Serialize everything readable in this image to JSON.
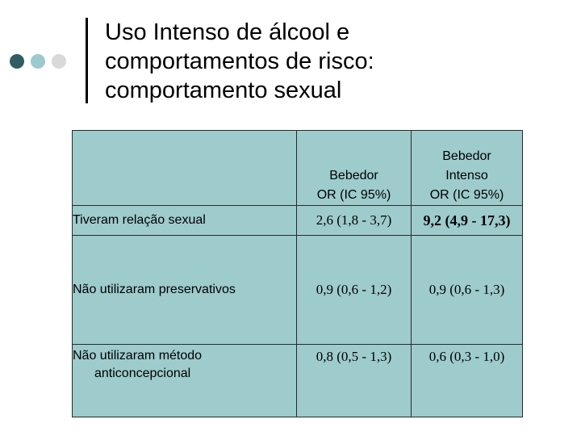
{
  "slide": {
    "title_lines": [
      "Uso Intenso de álcool e",
      "comportamentos de risco:",
      "comportamento sexual"
    ]
  },
  "colors": {
    "dot_dark": "#2f5d63",
    "dot_light": "#9cc9cd",
    "dot_gray": "#d9d9d9",
    "table_bg": "#9ecbcc"
  },
  "table": {
    "header": {
      "col1": "",
      "col2": [
        "Bebedor",
        "OR (IC 95%)"
      ],
      "col3": [
        "Bebedor",
        "Intenso",
        "OR (IC 95%)"
      ]
    },
    "rows": [
      {
        "label": [
          "Tiveram relação sexual"
        ],
        "bebedor": "2,6 (1,8 - 3,7)",
        "intenso": "9,2 (4,9 - 17,3)"
      },
      {
        "label": [
          "Não utilizaram preservativos"
        ],
        "bebedor": "0,9 (0,6 - 1,2)",
        "intenso": "0,9 (0,6 - 1,3)"
      },
      {
        "label": [
          "Não utilizaram método",
          "anticoncepcional"
        ],
        "bebedor": "0,8 (0,5 - 1,3)",
        "intenso": "0,6 (0,3 - 1,0)"
      }
    ]
  }
}
